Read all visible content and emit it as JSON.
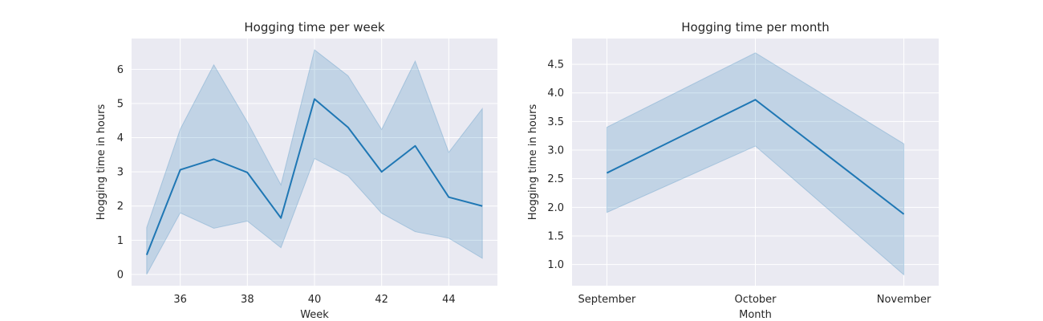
{
  "chart_data": [
    {
      "type": "line",
      "title": "Hogging time per week",
      "xlabel": "Week",
      "ylabel": "Hogging time in hours",
      "xlim": [
        34.55,
        45.45
      ],
      "ylim": [
        -0.33,
        6.9
      ],
      "xticks": [
        36,
        38,
        40,
        42,
        44
      ],
      "yticks": [
        0,
        1,
        2,
        3,
        4,
        5,
        6
      ],
      "grid": true,
      "x": [
        35,
        36,
        37,
        38,
        39,
        40,
        41,
        42,
        43,
        44,
        45
      ],
      "series": [
        {
          "values": [
            0.57,
            3.06,
            3.37,
            2.98,
            1.65,
            5.13,
            4.3,
            3.0,
            3.76,
            2.26,
            2.0
          ],
          "ci_lower": [
            0.0,
            1.8,
            1.35,
            1.56,
            0.78,
            3.39,
            2.88,
            1.79,
            1.25,
            1.06,
            0.47
          ],
          "ci_upper": [
            1.37,
            4.25,
            6.13,
            4.46,
            2.62,
            6.57,
            5.81,
            4.24,
            6.24,
            3.57,
            4.85
          ]
        }
      ],
      "colors": {
        "line": "#1f77b4",
        "band": "#1f77b4",
        "background": "#eaeaf2",
        "grid": "#ffffff"
      }
    },
    {
      "type": "line",
      "title": "Hogging time per month",
      "xlabel": "Month",
      "ylabel": "Hogging time in hours",
      "categories": [
        "September",
        "October",
        "November"
      ],
      "ylim": [
        0.63,
        4.95
      ],
      "yticks": [
        1.0,
        1.5,
        2.0,
        2.5,
        3.0,
        3.5,
        4.0,
        4.5
      ],
      "ytick_labels": [
        "1.0",
        "1.5",
        "2.0",
        "2.5",
        "3.0",
        "3.5",
        "4.0",
        "4.5"
      ],
      "grid": true,
      "series": [
        {
          "values": [
            2.6,
            3.88,
            1.88
          ],
          "ci_lower": [
            1.91,
            3.07,
            0.82
          ],
          "ci_upper": [
            3.4,
            4.7,
            3.11
          ]
        }
      ],
      "colors": {
        "line": "#1f77b4",
        "band": "#1f77b4",
        "background": "#eaeaf2",
        "grid": "#ffffff"
      }
    }
  ]
}
